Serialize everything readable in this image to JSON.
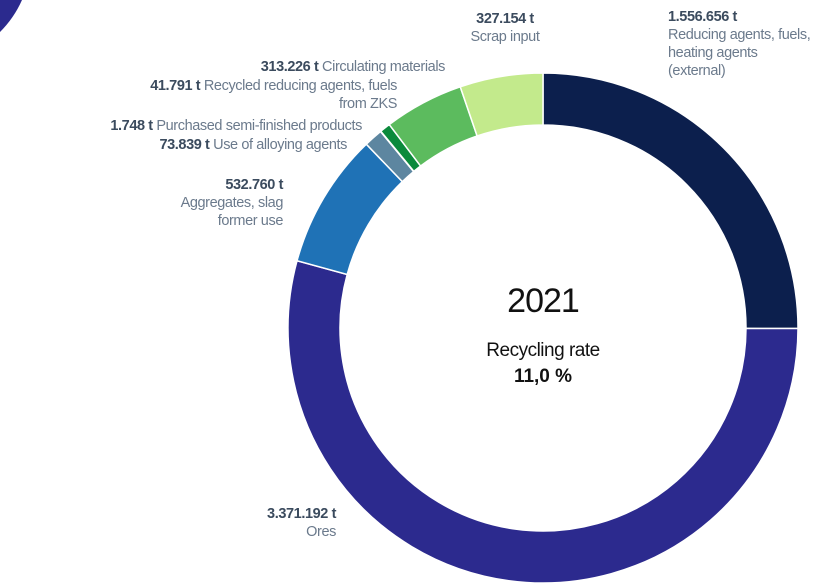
{
  "chart_data": {
    "type": "donut",
    "categories": [
      "Reducing agents, fuels, heating agents (external)",
      "Ores",
      "Aggregates, slag former use",
      "Use of alloying agents",
      "Purchased semi-finished products",
      "Recycled reducing agents, fuels from ZKS",
      "Circulating materials",
      "Scrap input"
    ],
    "values": [
      1556656,
      3371192,
      532760,
      73839,
      1748,
      41791,
      313226,
      327154
    ],
    "value_labels": [
      "1.556.656 t",
      "3.371.192 t",
      "532.760 t",
      "73.839 t",
      "1.748 t",
      "41.791 t",
      "313.226 t",
      "327.154 t"
    ],
    "colors": [
      "#0c1f4d",
      "#2c2a8e",
      "#1f72b6",
      "#5d86a0",
      "#17998b",
      "#0b8a3c",
      "#5cbb5e",
      "#c3ea8c"
    ],
    "center_texts": [
      "2021",
      "Recycling rate",
      "11,0 %"
    ]
  }
}
